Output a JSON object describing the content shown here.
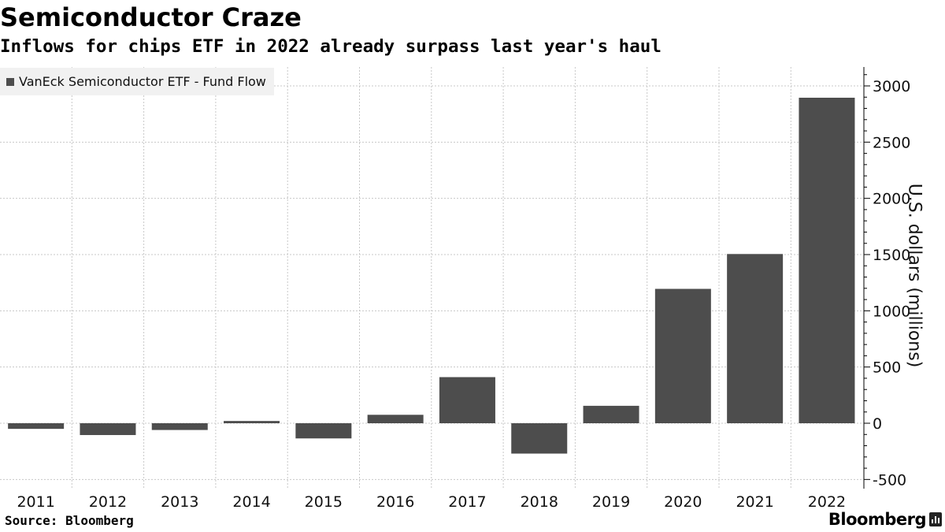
{
  "header": {
    "title": "Semiconductor Craze",
    "subtitle": "Inflows for chips ETF in 2022 already surpass last year's haul"
  },
  "footer": {
    "source": "Source: Bloomberg",
    "logo": "Bloomberg"
  },
  "colors": {
    "bar": "#4d4d4d",
    "grid": "#c8c8c8",
    "axis": "#000000",
    "legend_bg": "#f1f1f1"
  },
  "chart_data": {
    "type": "bar",
    "title": "Semiconductor Craze",
    "subtitle": "Inflows for chips ETF in 2022 already surpass last year's haul",
    "xlabel": "",
    "ylabel": "U.S. dollars (millions)",
    "categories": [
      "2011",
      "2012",
      "2013",
      "2014",
      "2015",
      "2016",
      "2017",
      "2018",
      "2019",
      "2020",
      "2021",
      "2022"
    ],
    "series": [
      {
        "name": "VanEck Semiconductor ETF - Fund Flow",
        "values": [
          -50,
          -105,
          -60,
          20,
          -135,
          75,
          410,
          -270,
          155,
          1195,
          1505,
          2895
        ]
      }
    ],
    "ylim": [
      -500,
      3200
    ],
    "yticks": [
      -500,
      0,
      500,
      1000,
      1500,
      2000,
      2500,
      3000
    ],
    "ytick_labels": [
      "-500",
      "0",
      "500",
      "1000",
      "1500",
      "2000",
      "2500",
      "3000"
    ],
    "yaxis_position": "right",
    "grid": true,
    "legend_position": "top-left"
  }
}
